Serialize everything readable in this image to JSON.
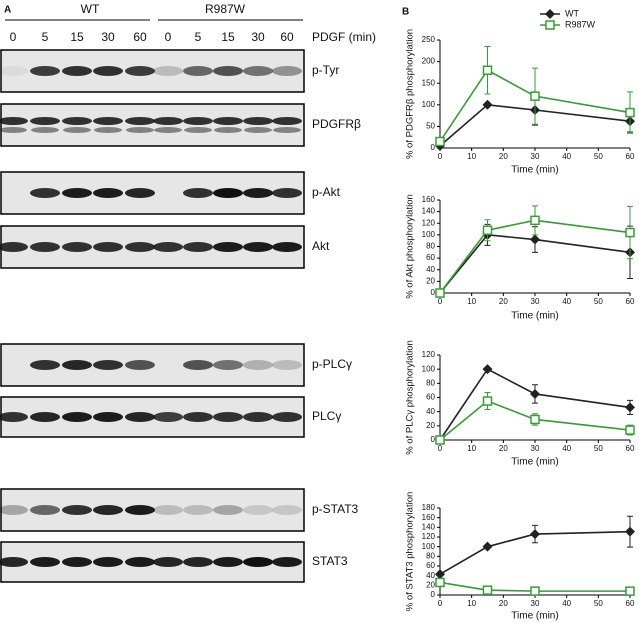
{
  "panel_labels": [
    "A",
    "B"
  ],
  "blots": {
    "groups": [
      "WT",
      "R987W"
    ],
    "lanes": [
      0,
      5,
      15,
      30,
      60,
      0,
      5,
      15,
      30,
      60
    ],
    "treatment": "PDGF (min)",
    "rows": [
      "p-Tyr",
      "PDGFRβ",
      "p-Akt",
      "Akt",
      "p-PLCγ",
      "PLCγ",
      "p-STAT3",
      "STAT3"
    ]
  },
  "chart_data": [
    {
      "type": "line",
      "x_label": "Time (min)",
      "y_label": "% of PDGFRβ phosphorylation",
      "legend": "upper right",
      "x": [
        0,
        15,
        30,
        60
      ],
      "xlim": [
        0,
        60
      ],
      "xticks": [
        0,
        10,
        20,
        30,
        40,
        50,
        60
      ],
      "ylim": [
        0,
        250
      ],
      "yticks": [
        0,
        50,
        100,
        150,
        200,
        250
      ],
      "series": [
        {
          "name": "WT",
          "color": "#222222",
          "values": [
            5,
            100,
            88,
            62
          ],
          "errors": [
            0,
            0,
            35,
            25
          ]
        },
        {
          "name": "R987W",
          "color": "#3a9a3a",
          "values": [
            15,
            180,
            120,
            82
          ],
          "errors": [
            0,
            55,
            65,
            48
          ]
        }
      ]
    },
    {
      "type": "line",
      "x_label": "Time (min)",
      "y_label": "% of Akt phosphorylation",
      "x": [
        0,
        15,
        30,
        60
      ],
      "xlim": [
        0,
        60
      ],
      "xticks": [
        0,
        10,
        20,
        30,
        40,
        50,
        60
      ],
      "ylim": [
        0,
        160
      ],
      "yticks": [
        0,
        20,
        40,
        60,
        80,
        100,
        120,
        140,
        160
      ],
      "series": [
        {
          "name": "WT",
          "color": "#222222",
          "values": [
            0,
            100,
            92,
            70
          ],
          "errors": [
            0,
            18,
            22,
            45
          ]
        },
        {
          "name": "R987W",
          "color": "#3a9a3a",
          "values": [
            0,
            108,
            125,
            104
          ],
          "errors": [
            0,
            18,
            25,
            45
          ]
        }
      ]
    },
    {
      "type": "line",
      "x_label": "Time (min)",
      "y_label": "% of PLCγ phosphorylation",
      "x": [
        0,
        15,
        30,
        60
      ],
      "xlim": [
        0,
        60
      ],
      "xticks": [
        0,
        10,
        20,
        30,
        40,
        50,
        60
      ],
      "ylim": [
        0,
        120
      ],
      "yticks": [
        0,
        20,
        40,
        60,
        80,
        100,
        120
      ],
      "series": [
        {
          "name": "WT",
          "color": "#222222",
          "values": [
            0,
            100,
            65,
            46
          ],
          "errors": [
            0,
            0,
            13,
            10
          ]
        },
        {
          "name": "R987W",
          "color": "#3a9a3a",
          "values": [
            0,
            55,
            29,
            14
          ],
          "errors": [
            0,
            12,
            8,
            7
          ]
        }
      ]
    },
    {
      "type": "line",
      "x_label": "Time (min)",
      "y_label": "% of STAT3 phosphorylation",
      "x": [
        0,
        15,
        30,
        60
      ],
      "xlim": [
        0,
        60
      ],
      "xticks": [
        0,
        10,
        20,
        30,
        40,
        50,
        60
      ],
      "ylim": [
        0,
        180
      ],
      "yticks": [
        0,
        20,
        40,
        60,
        80,
        100,
        120,
        140,
        160,
        180
      ],
      "series": [
        {
          "name": "WT",
          "color": "#222222",
          "values": [
            43,
            100,
            126,
            131
          ],
          "errors": [
            0,
            0,
            18,
            32
          ]
        },
        {
          "name": "R987W",
          "color": "#3a9a3a",
          "values": [
            26,
            10,
            8,
            8
          ],
          "errors": [
            0,
            7,
            8,
            7
          ]
        }
      ]
    }
  ]
}
